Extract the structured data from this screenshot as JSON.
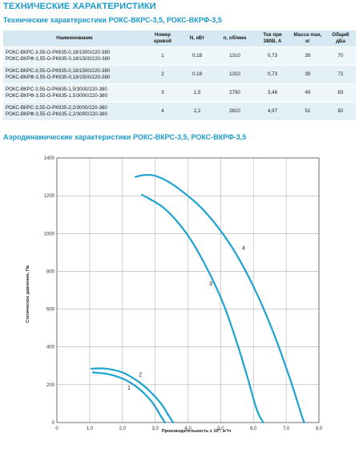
{
  "header": {
    "title": "ТЕХНИЧЕСКИЕ ХАРАКТЕРИСТИКИ",
    "subtitle": "Технические характеристики РОКС-ВКРС-3,5, РОКС-ВКРФ-3,5"
  },
  "table": {
    "headers": {
      "name": "Наименование",
      "curve": "Номер кривой",
      "power": "N, кВт",
      "rpm": "n, об/мин",
      "current": "Ток при 380В, А",
      "mass": "Масса max, кг",
      "noise": "Общий дБа"
    },
    "rows": [
      {
        "model1": "РОКС-ВКРС-3,55-О-РК635-0,18/1500/220-380",
        "model2": "РОКС-ВКРФ-3,55-О-РК635-0,18/1500/220-380",
        "curve": "1",
        "power": "0,18",
        "rpm": "1310",
        "current": "0,73",
        "mass": "39",
        "noise": "70"
      },
      {
        "model1": "РОКС-ВКРС-3,55-О-РК935-0,18/1500/220-380",
        "model2": "РОКС-ВКРФ-3,55-О-РК935-0,18/1500/220-380",
        "curve": "2",
        "power": "0,18",
        "rpm": "1310",
        "current": "0,73",
        "mass": "39",
        "noise": "72"
      },
      {
        "model1": "РОКС-ВКРС-3,55-О-РК635-1,5/3000/220-380",
        "model2": "РОКС-ВКРФ-3,55-О-РК635-1,5/3000/220-380",
        "curve": "3",
        "power": "1,5",
        "rpm": "2790",
        "current": "3,48",
        "mass": "49",
        "noise": "83"
      },
      {
        "model1": "РОКС-ВКРС-3,55-О-РК935-2,2/3000/220-380",
        "model2": "РОКС-ВКРФ-3,55-О-РК935-2,2/3000/220-380",
        "curve": "4",
        "power": "2,2",
        "rpm": "2810",
        "current": "4,97",
        "mass": "51",
        "noise": "82"
      }
    ]
  },
  "aero_title": "Аэродинамические характеристики РОКС-ВКРС-3,5, РОКС-ВКРФ-3,5",
  "chart_data": {
    "type": "line",
    "xlabel_main": "Производительность х 10",
    "xlabel_sup": "3",
    "xlabel_unit": ", м³/ч",
    "ylabel": "Статическое давление, Па",
    "xlim": [
      0,
      8
    ],
    "ylim": [
      0,
      1400
    ],
    "x_ticks": [
      "0",
      "1,0",
      "2,0",
      "3,0",
      "4,0",
      "5,0",
      "6,0",
      "7,0",
      "8,0"
    ],
    "y_ticks": [
      "0",
      "200",
      "400",
      "600",
      "800",
      "1000",
      "1200",
      "1400"
    ],
    "grid": true,
    "line_color": "#1ca3cf",
    "series": [
      {
        "name": "1",
        "x": [
          1.1,
          1.6,
          2.1,
          2.5,
          2.8,
          3.0,
          3.15,
          3.3
        ],
        "y": [
          265,
          255,
          225,
          180,
          130,
          85,
          40,
          0
        ]
      },
      {
        "name": "2",
        "x": [
          1.05,
          1.5,
          2.0,
          2.5,
          2.9,
          3.2,
          3.4,
          3.55
        ],
        "y": [
          285,
          285,
          265,
          215,
          155,
          95,
          40,
          0
        ]
      },
      {
        "name": "3",
        "x": [
          2.6,
          3.3,
          4.0,
          4.6,
          5.1,
          5.5,
          5.8,
          6.1,
          6.3
        ],
        "y": [
          1205,
          1130,
          990,
          810,
          620,
          420,
          250,
          70,
          0
        ]
      },
      {
        "name": "4",
        "x": [
          2.4,
          2.7,
          3.1,
          3.7,
          4.5,
          5.3,
          6.0,
          6.6,
          7.1,
          7.45,
          7.55
        ],
        "y": [
          1300,
          1310,
          1300,
          1240,
          1120,
          940,
          720,
          480,
          240,
          50,
          0
        ]
      }
    ],
    "labels": [
      {
        "series": "1",
        "x": 2.2,
        "y": 175
      },
      {
        "series": "2",
        "x": 2.55,
        "y": 245
      },
      {
        "series": "3",
        "x": 4.7,
        "y": 725
      },
      {
        "series": "4",
        "x": 5.7,
        "y": 915
      }
    ]
  }
}
